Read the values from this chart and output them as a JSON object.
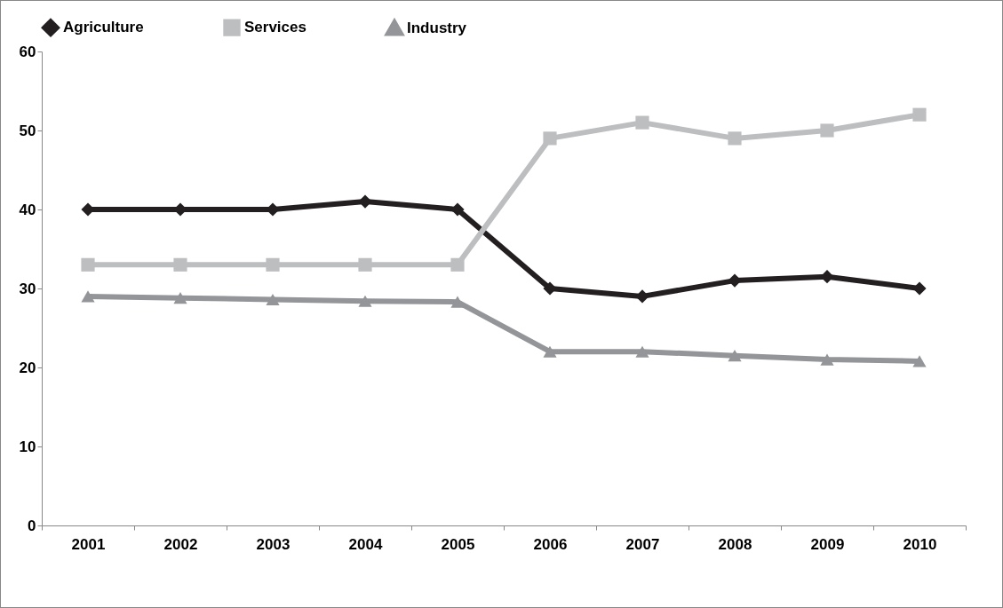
{
  "chart_data": {
    "type": "line",
    "categories": [
      "2001",
      "2002",
      "2003",
      "2004",
      "2005",
      "2006",
      "2007",
      "2008",
      "2009",
      "2010"
    ],
    "series": [
      {
        "name": "Agriculture",
        "color": "#231f20",
        "marker": "diamond",
        "values": [
          40,
          40,
          40,
          41,
          40,
          30,
          29,
          31,
          31.5,
          30
        ]
      },
      {
        "name": "Services",
        "color": "#bcbec0",
        "marker": "square",
        "values": [
          33,
          33,
          33,
          33,
          33,
          49,
          51,
          49,
          50,
          52
        ]
      },
      {
        "name": "Industry",
        "color": "#939598",
        "marker": "triangle",
        "values": [
          29,
          28.8,
          28.6,
          28.4,
          28.3,
          22,
          22,
          21.5,
          21,
          20.8
        ]
      }
    ],
    "ylim": [
      0,
      60
    ],
    "yticks": [
      0,
      10,
      20,
      30,
      40,
      50,
      60
    ],
    "legend": "top",
    "grid": false
  }
}
